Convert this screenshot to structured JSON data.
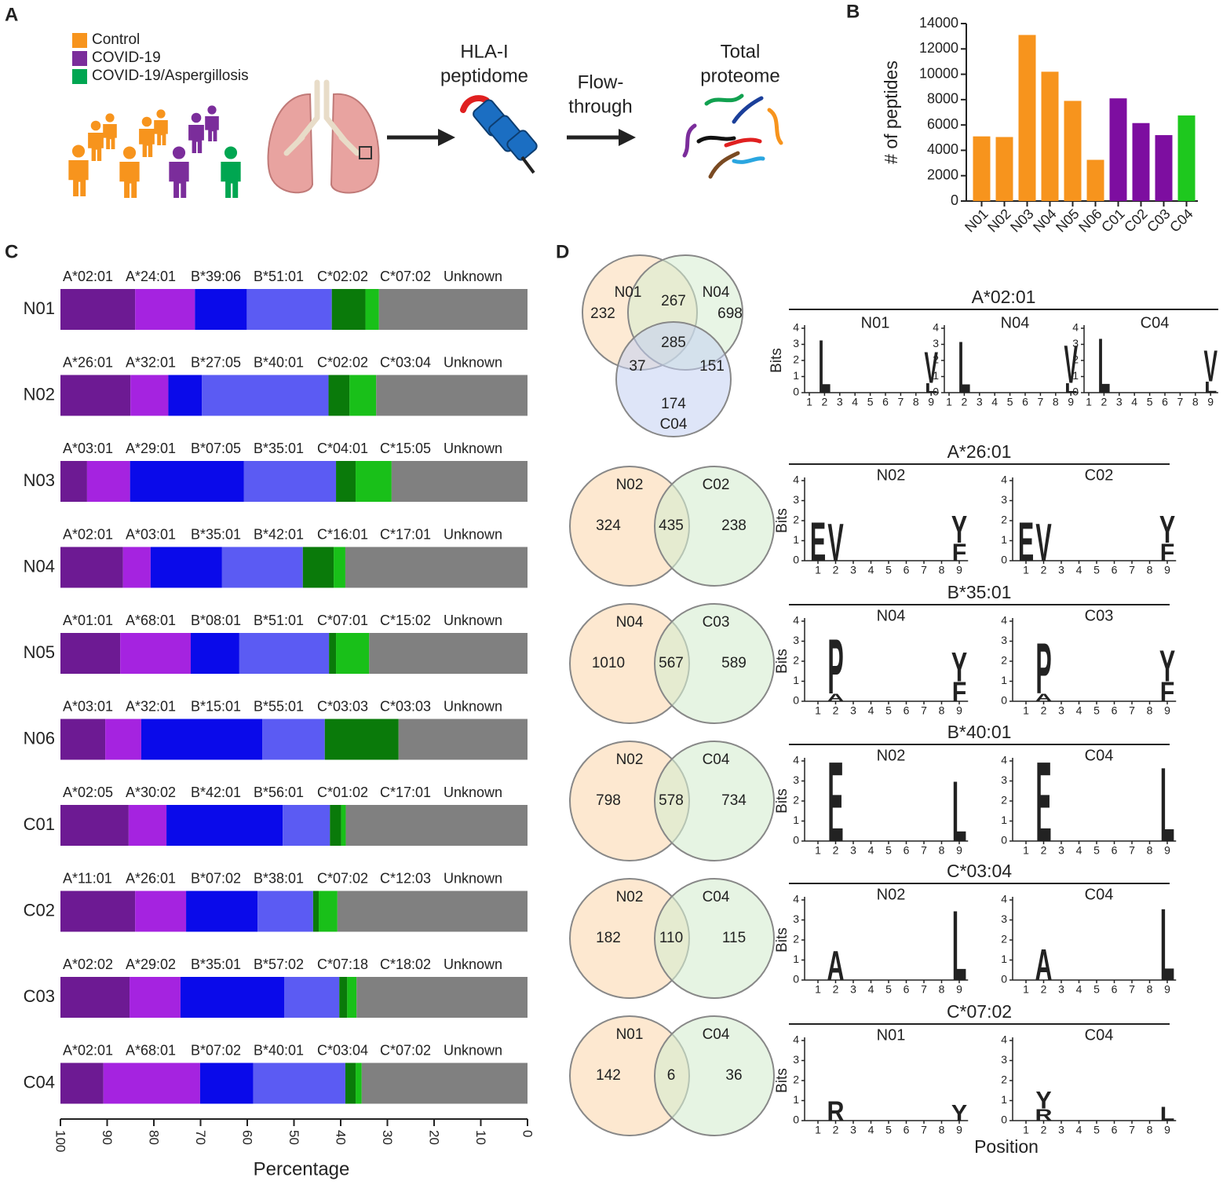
{
  "panel_labels": [
    "A",
    "B",
    "C",
    "D"
  ],
  "schematic": {
    "legend": [
      {
        "label": "Control",
        "color": "#f7941d"
      },
      {
        "label": "COVID-19",
        "color": "#7b2d9b"
      },
      {
        "label": "COVID-19/Aspergillosis",
        "color": "#00a651"
      }
    ],
    "steps": [
      [
        "HLA-I",
        "peptidome"
      ],
      [
        "Flow-",
        "through"
      ],
      [
        "Total",
        "proteome"
      ]
    ]
  },
  "chart_data": [
    {
      "type": "bar",
      "ylabel": "# of peptides",
      "categories": [
        "N01",
        "N02",
        "N03",
        "N04",
        "N05",
        "N06",
        "C01",
        "C02",
        "C03",
        "C04"
      ],
      "values": [
        5100,
        5050,
        13100,
        10200,
        7900,
        3250,
        8100,
        6150,
        5200,
        6750
      ],
      "colors": [
        "#f7941d",
        "#f7941d",
        "#f7941d",
        "#f7941d",
        "#f7941d",
        "#f7941d",
        "#7d0ea0",
        "#7d0ea0",
        "#7d0ea0",
        "#1ec81e"
      ],
      "ylim": [
        0,
        14000
      ],
      "yticks": [
        0,
        2000,
        4000,
        6000,
        8000,
        10000,
        12000,
        14000
      ]
    },
    {
      "type": "stacked_hbar",
      "xlabel": "Percentage",
      "xlim": [
        100,
        0
      ],
      "xticks": [
        100,
        90,
        80,
        70,
        60,
        50,
        40,
        30,
        20,
        10,
        0
      ],
      "segment_colors": [
        "#6d1a93",
        "#a523e0",
        "#0a0aea",
        "#5b5bf3",
        "#0a7a0a",
        "#19c019",
        "#808080"
      ],
      "label_colors": [
        "#7b2d9b",
        "#c000d0",
        "#0000dd",
        "#6060ee",
        "#3a7a00",
        "#00b050",
        "#111111"
      ],
      "rows": [
        {
          "name": "N01",
          "color": "#f7941d",
          "segments": [
            {
              "label": "A*02:01",
              "value": 16.0
            },
            {
              "label": "A*24:01",
              "value": 12.8
            },
            {
              "label": "B*39:06",
              "value": 11.1
            },
            {
              "label": "B*51:01",
              "value": 18.2
            },
            {
              "label": "C*02:02",
              "value": 7.2
            },
            {
              "label": "C*07:02",
              "value": 2.9
            },
            {
              "label": "Unknown",
              "value": 31.8
            }
          ]
        },
        {
          "name": "N02",
          "color": "#f7941d",
          "segments": [
            {
              "label": "A*26:01",
              "value": 15.0
            },
            {
              "label": "A*32:01",
              "value": 8.1
            },
            {
              "label": "B*27:05",
              "value": 7.2
            },
            {
              "label": "B*40:01",
              "value": 27.1
            },
            {
              "label": "C*02:02",
              "value": 4.5
            },
            {
              "label": "C*03:04",
              "value": 5.7
            },
            {
              "label": "Unknown",
              "value": 32.4
            }
          ]
        },
        {
          "name": "N03",
          "color": "#f7941d",
          "segments": [
            {
              "label": "A*03:01",
              "value": 5.7
            },
            {
              "label": "A*29:01",
              "value": 9.2
            },
            {
              "label": "B*07:05",
              "value": 24.4
            },
            {
              "label": "B*35:01",
              "value": 19.7
            },
            {
              "label": "C*04:01",
              "value": 4.2
            },
            {
              "label": "C*15:05",
              "value": 7.7
            },
            {
              "label": "Unknown",
              "value": 29.1
            }
          ]
        },
        {
          "name": "N04",
          "color": "#f7941d",
          "segments": [
            {
              "label": "A*02:01",
              "value": 13.4
            },
            {
              "label": "A*03:01",
              "value": 5.9
            },
            {
              "label": "B*35:01",
              "value": 15.3
            },
            {
              "label": "B*42:01",
              "value": 17.3
            },
            {
              "label": "C*16:01",
              "value": 6.6
            },
            {
              "label": "C*17:01",
              "value": 2.5
            },
            {
              "label": "Unknown",
              "value": 39.0
            }
          ]
        },
        {
          "name": "N05",
          "color": "#f7941d",
          "segments": [
            {
              "label": "A*01:01",
              "value": 12.8
            },
            {
              "label": "A*68:01",
              "value": 15.1
            },
            {
              "label": "B*08:01",
              "value": 10.4
            },
            {
              "label": "B*51:01",
              "value": 19.2
            },
            {
              "label": "C*07:01",
              "value": 1.5
            },
            {
              "label": "C*15:02",
              "value": 7.1
            },
            {
              "label": "Unknown",
              "value": 33.9
            }
          ]
        },
        {
          "name": "N06",
          "color": "#f7941d",
          "segments": [
            {
              "label": "A*03:01",
              "value": 9.6
            },
            {
              "label": "A*32:01",
              "value": 7.7
            },
            {
              "label": "B*15:01",
              "value": 25.9
            },
            {
              "label": "B*55:01",
              "value": 13.4
            },
            {
              "label": "C*03:03",
              "value": 15.8
            },
            {
              "label": "C*03:03",
              "value": 0
            },
            {
              "label": "Unknown",
              "value": 27.6
            }
          ]
        },
        {
          "name": "C01",
          "color": "#7b2d9b",
          "segments": [
            {
              "label": "A*02:05",
              "value": 14.6
            },
            {
              "label": "A*30:02",
              "value": 8.1
            },
            {
              "label": "B*42:01",
              "value": 24.9
            },
            {
              "label": "B*56:01",
              "value": 10.1
            },
            {
              "label": "C*01:02",
              "value": 2.4
            },
            {
              "label": "C*17:01",
              "value": 1.0
            },
            {
              "label": "Unknown",
              "value": 38.9
            }
          ]
        },
        {
          "name": "C02",
          "color": "#7b2d9b",
          "segments": [
            {
              "label": "A*11:01",
              "value": 16.0
            },
            {
              "label": "A*26:01",
              "value": 10.9
            },
            {
              "label": "B*07:02",
              "value": 15.3
            },
            {
              "label": "B*38:01",
              "value": 11.9
            },
            {
              "label": "C*07:02",
              "value": 1.2
            },
            {
              "label": "C*12:03",
              "value": 4.0
            },
            {
              "label": "Unknown",
              "value": 40.7
            }
          ]
        },
        {
          "name": "C03",
          "color": "#7b2d9b",
          "segments": [
            {
              "label": "A*02:02",
              "value": 14.8
            },
            {
              "label": "A*29:02",
              "value": 10.9
            },
            {
              "label": "B*35:01",
              "value": 22.2
            },
            {
              "label": "B*57:02",
              "value": 11.8
            },
            {
              "label": "C*07:18",
              "value": 1.7
            },
            {
              "label": "C*18:02",
              "value": 2.0
            },
            {
              "label": "Unknown",
              "value": 36.6
            }
          ]
        },
        {
          "name": "C04",
          "color": "#00a651",
          "segments": [
            {
              "label": "A*02:01",
              "value": 9.2
            },
            {
              "label": "A*68:01",
              "value": 20.7
            },
            {
              "label": "B*07:02",
              "value": 11.4
            },
            {
              "label": "B*40:01",
              "value": 19.7
            },
            {
              "label": "C*03:04",
              "value": 2.2
            },
            {
              "label": "C*07:02",
              "value": 1.3
            },
            {
              "label": "Unknown",
              "value": 35.5
            }
          ]
        }
      ]
    }
  ],
  "panel_d": {
    "ylabel": "Bits",
    "xlabel": "Position",
    "ylim": [
      0,
      4
    ],
    "yticks": [
      0,
      1,
      2,
      3,
      4
    ],
    "positions": [
      1,
      2,
      3,
      4,
      5,
      6,
      7,
      8,
      9
    ],
    "residue_colors": {
      "L": "#000000",
      "V": "#000000",
      "P": "#000000",
      "F": "#000000",
      "A": "#000000",
      "E": "#cc0000",
      "Y": "#22bb22",
      "R": "#1030c0"
    },
    "groups": [
      {
        "allele": "A*02:01",
        "venn": {
          "sets": [
            {
              "name": "N01",
              "color": "#f7941d",
              "fill": "#fbd9b0"
            },
            {
              "name": "N04",
              "color": "#f7941d",
              "fill": "#d5ecd0"
            },
            {
              "name": "C04",
              "color": "#00a651",
              "fill": "#c3d0f2"
            }
          ],
          "counts": [
            232,
            267,
            698,
            37,
            285,
            151,
            174
          ]
        },
        "logos": [
          {
            "sample": "N01",
            "color": "#f7941d",
            "letters": [
              {
                "position": 2,
                "residue": "L",
                "bits": 3.4
              },
              {
                "position": 9,
                "residue": "L",
                "bits": 0.6
              },
              {
                "position": 9,
                "residue": "V",
                "bits": 2.0
              }
            ]
          },
          {
            "sample": "N04",
            "color": "#f7941d",
            "letters": [
              {
                "position": 2,
                "residue": "L",
                "bits": 3.3
              },
              {
                "position": 9,
                "residue": "L",
                "bits": 0.6
              },
              {
                "position": 9,
                "residue": "V",
                "bits": 2.4
              }
            ]
          },
          {
            "sample": "C04",
            "color": "#00a651",
            "letters": [
              {
                "position": 2,
                "residue": "L",
                "bits": 3.5
              },
              {
                "position": 9,
                "residue": "L",
                "bits": 0.7
              },
              {
                "position": 9,
                "residue": "V",
                "bits": 2.0
              }
            ]
          }
        ]
      },
      {
        "allele": "A*26:01",
        "venn": {
          "sets": [
            {
              "name": "N02",
              "color": "#f7941d",
              "fill": "#fbd9b0"
            },
            {
              "name": "C02",
              "color": "#7b2d9b",
              "fill": "#d5ecd0"
            }
          ],
          "counts": [
            324,
            435,
            238
          ]
        },
        "logos": [
          {
            "sample": "N02",
            "color": "#f7941d",
            "letters": [
              {
                "position": 1,
                "residue": "E",
                "bits": 2.0
              },
              {
                "position": 2,
                "residue": "V",
                "bits": 1.9
              },
              {
                "position": 9,
                "residue": "F",
                "bits": 0.9
              },
              {
                "position": 9,
                "residue": "Y",
                "bits": 1.4
              }
            ]
          },
          {
            "sample": "C02",
            "color": "#7b2d9b",
            "letters": [
              {
                "position": 1,
                "residue": "E",
                "bits": 2.0
              },
              {
                "position": 2,
                "residue": "V",
                "bits": 1.9
              },
              {
                "position": 9,
                "residue": "F",
                "bits": 0.9
              },
              {
                "position": 9,
                "residue": "Y",
                "bits": 1.4
              }
            ]
          }
        ]
      },
      {
        "allele": "B*35:01",
        "venn": {
          "sets": [
            {
              "name": "N04",
              "color": "#f7941d",
              "fill": "#fbd9b0"
            },
            {
              "name": "C03",
              "color": "#7b2d9b",
              "fill": "#d5ecd0"
            }
          ],
          "counts": [
            1010,
            567,
            589
          ]
        },
        "logos": [
          {
            "sample": "N04",
            "color": "#f7941d",
            "letters": [
              {
                "position": 2,
                "residue": "A",
                "bits": 0.4
              },
              {
                "position": 2,
                "residue": "P",
                "bits": 2.8
              },
              {
                "position": 9,
                "residue": "F",
                "bits": 1.0
              },
              {
                "position": 9,
                "residue": "Y",
                "bits": 1.5
              }
            ]
          },
          {
            "sample": "C03",
            "color": "#7b2d9b",
            "letters": [
              {
                "position": 2,
                "residue": "A",
                "bits": 0.4
              },
              {
                "position": 2,
                "residue": "P",
                "bits": 2.6
              },
              {
                "position": 9,
                "residue": "F",
                "bits": 1.0
              },
              {
                "position": 9,
                "residue": "Y",
                "bits": 1.6
              }
            ]
          }
        ]
      },
      {
        "allele": "B*40:01",
        "venn": {
          "sets": [
            {
              "name": "N02",
              "color": "#f7941d",
              "fill": "#fbd9b0"
            },
            {
              "name": "C04",
              "color": "#00a651",
              "fill": "#d5ecd0"
            }
          ],
          "counts": [
            798,
            578,
            734
          ]
        },
        "logos": [
          {
            "sample": "N02",
            "color": "#f7941d",
            "letters": [
              {
                "position": 2,
                "residue": "E",
                "bits": 4.1
              },
              {
                "position": 9,
                "residue": "L",
                "bits": 3.1
              }
            ]
          },
          {
            "sample": "C04",
            "color": "#00a651",
            "letters": [
              {
                "position": 2,
                "residue": "E",
                "bits": 4.1
              },
              {
                "position": 9,
                "residue": "L",
                "bits": 3.8
              }
            ]
          }
        ]
      },
      {
        "allele": "C*03:04",
        "venn": {
          "sets": [
            {
              "name": "N02",
              "color": "#f7941d",
              "fill": "#fbd9b0"
            },
            {
              "name": "C04",
              "color": "#00a651",
              "fill": "#d5ecd0"
            }
          ],
          "counts": [
            182,
            110,
            115
          ]
        },
        "logos": [
          {
            "sample": "N02",
            "color": "#f7941d",
            "letters": [
              {
                "position": 2,
                "residue": "A",
                "bits": 1.5
              },
              {
                "position": 9,
                "residue": "L",
                "bits": 3.6
              }
            ]
          },
          {
            "sample": "C04",
            "color": "#00a651",
            "letters": [
              {
                "position": 2,
                "residue": "A",
                "bits": 1.6
              },
              {
                "position": 9,
                "residue": "L",
                "bits": 3.7
              }
            ]
          }
        ]
      },
      {
        "allele": "C*07:02",
        "venn": {
          "sets": [
            {
              "name": "N01",
              "color": "#f7941d",
              "fill": "#fbd9b0"
            },
            {
              "name": "C04",
              "color": "#00a651",
              "fill": "#d5ecd0"
            }
          ],
          "counts": [
            142,
            6,
            36
          ]
        },
        "logos": [
          {
            "sample": "N01",
            "color": "#f7941d",
            "letters": [
              {
                "position": 2,
                "residue": "R",
                "bits": 1.0
              },
              {
                "position": 9,
                "residue": "Y",
                "bits": 0.8
              }
            ]
          },
          {
            "sample": "C04",
            "color": "#00a651",
            "letters": [
              {
                "position": 2,
                "residue": "R",
                "bits": 0.6
              },
              {
                "position": 2,
                "residue": "Y",
                "bits": 0.9
              },
              {
                "position": 9,
                "residue": "L",
                "bits": 0.7
              }
            ]
          }
        ]
      }
    ]
  }
}
